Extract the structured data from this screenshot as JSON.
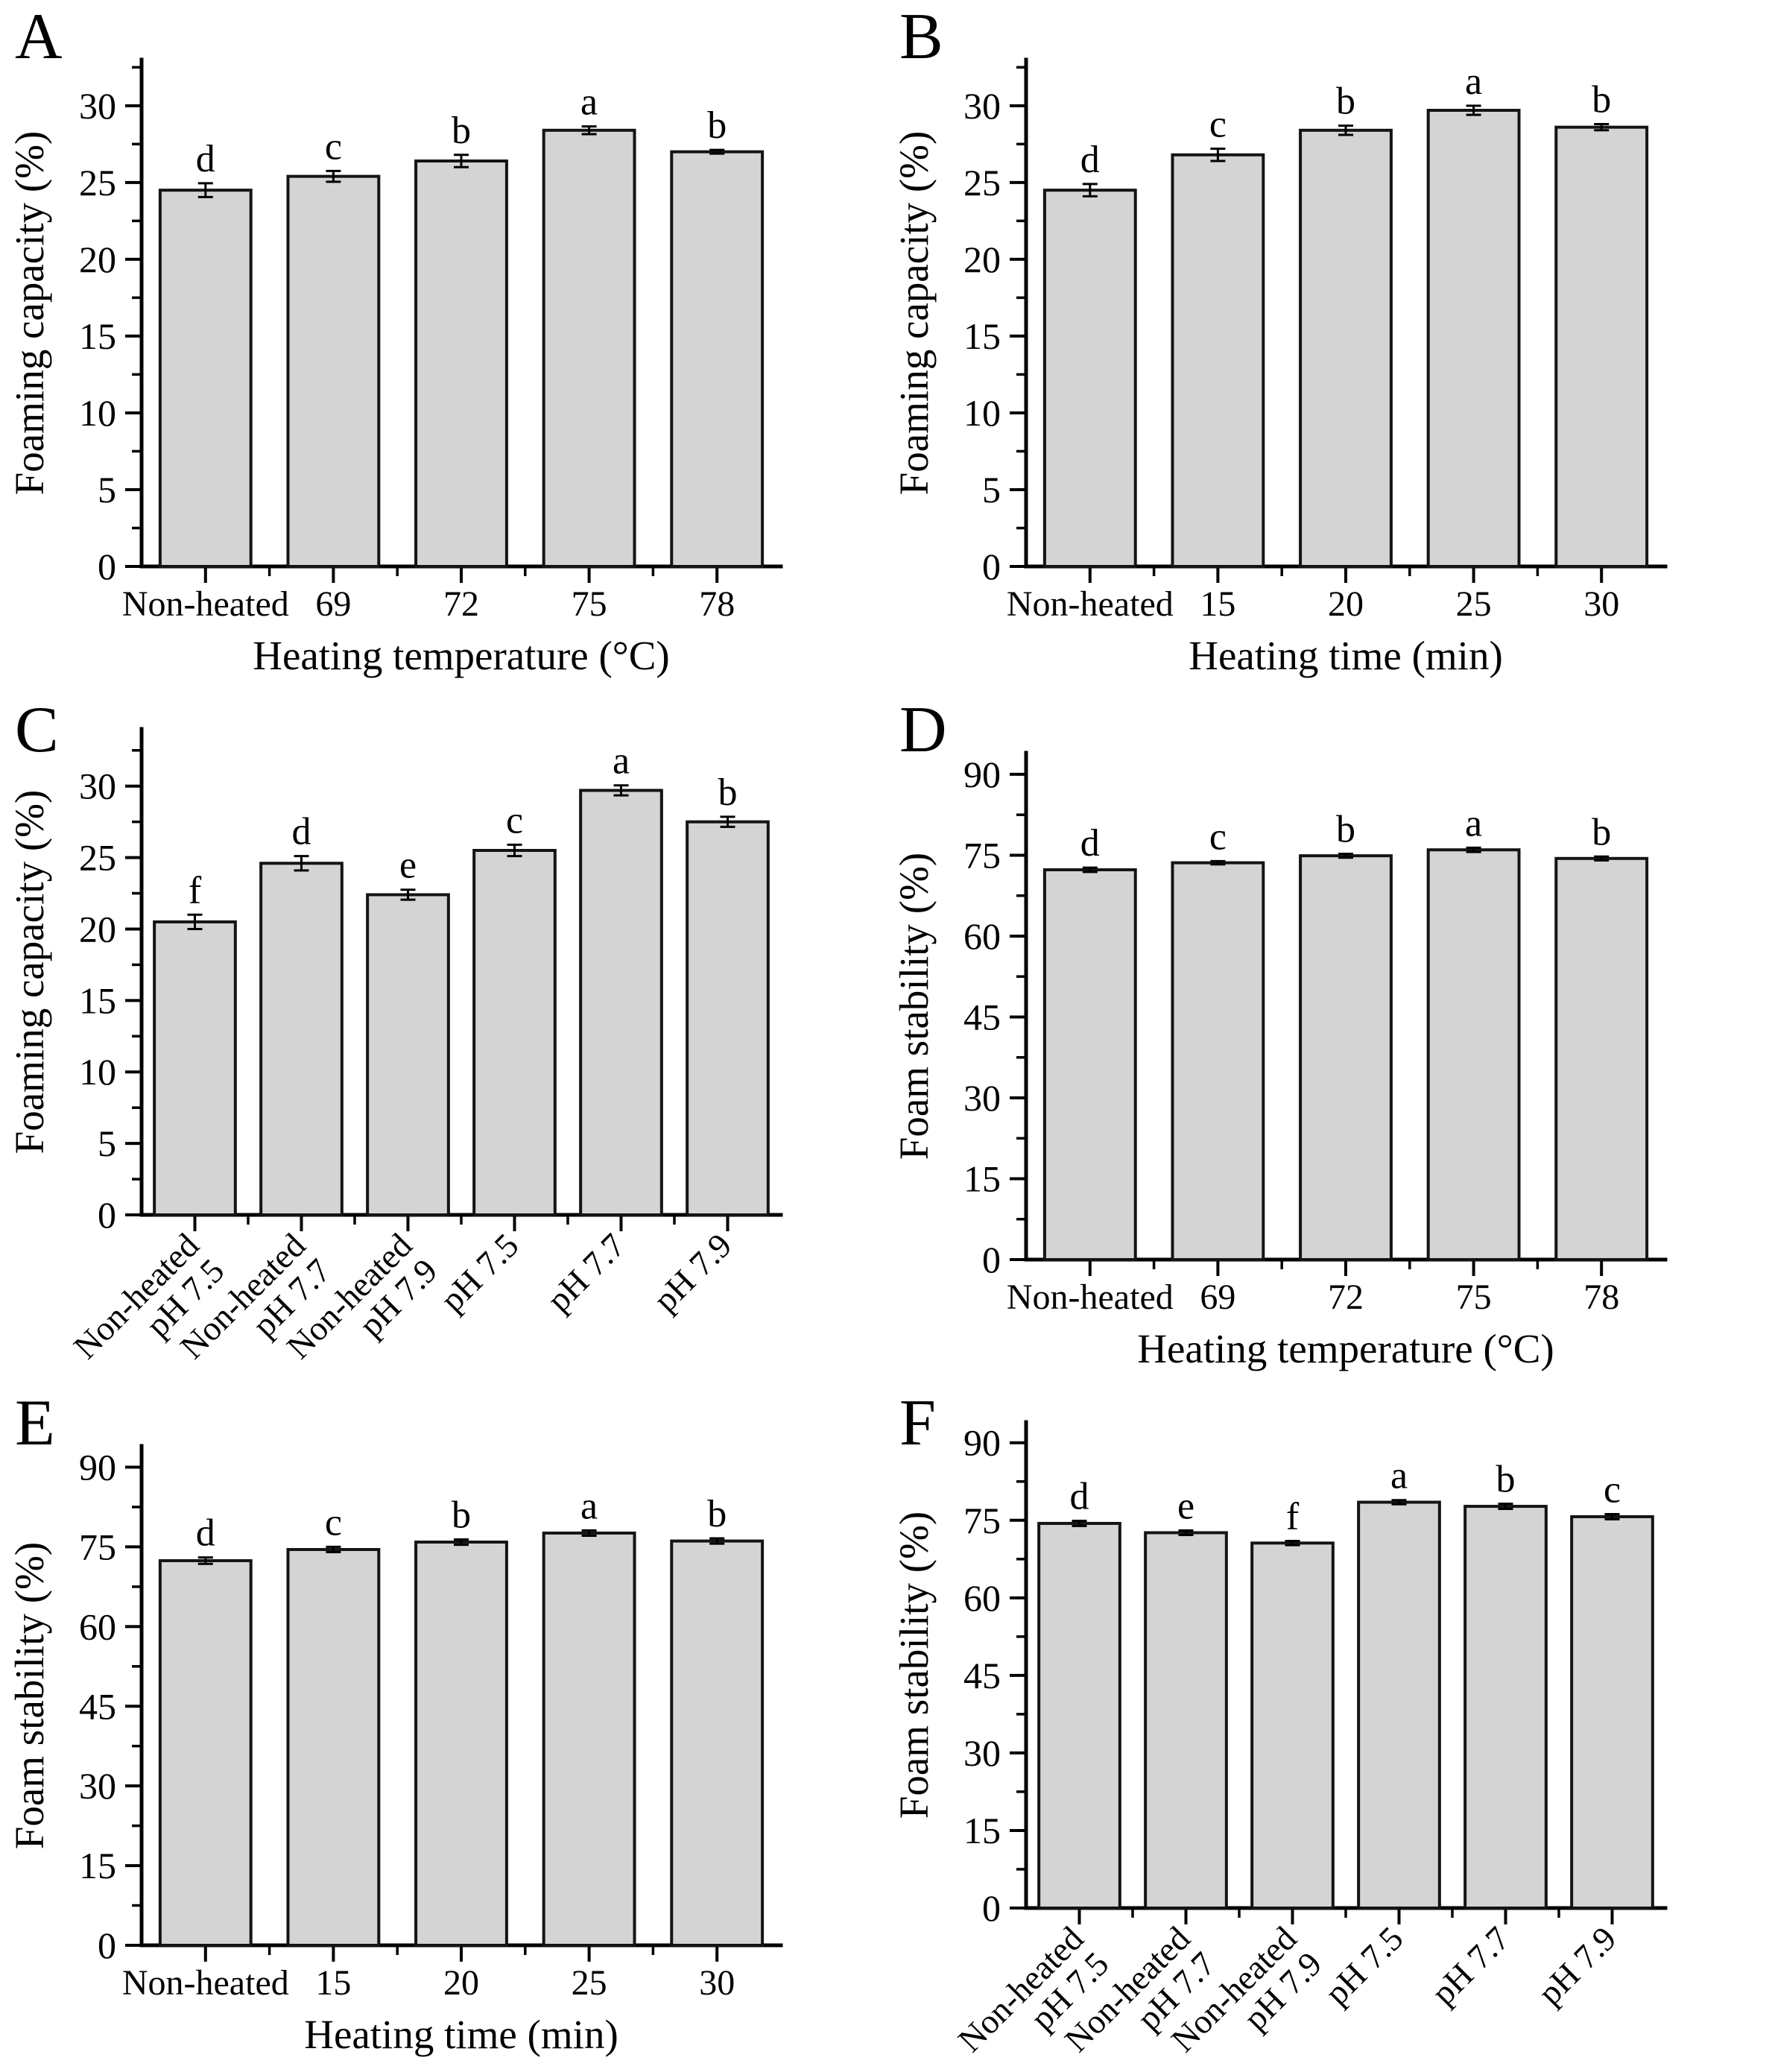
{
  "figure": {
    "background": "#ffffff",
    "bar_fill": "#d4d4d4",
    "bar_stroke": "#141414",
    "axis_color": "#000000",
    "text_color": "#000000"
  },
  "chart_data": [
    {
      "panel": "A",
      "type": "bar",
      "ylabel": "Foaming capacity (%)",
      "xlabel": "Heating temperature (°C)",
      "categories": [
        "Non-heated",
        "69",
        "72",
        "75",
        "78"
      ],
      "values": [
        24.5,
        25.4,
        26.4,
        28.4,
        27.0
      ],
      "errors": [
        0.45,
        0.35,
        0.4,
        0.25,
        0.12
      ],
      "sig_letters": [
        "d",
        "c",
        "b",
        "a",
        "b"
      ],
      "ylim": [
        0,
        33
      ],
      "yticks": [
        0,
        5,
        10,
        15,
        20,
        25,
        30
      ],
      "y_minor_step": 2.5,
      "rotated_x_labels": false,
      "legend": "none",
      "grid": "off"
    },
    {
      "panel": "B",
      "type": "bar",
      "ylabel": "Foaming capacity (%)",
      "xlabel": "Heating time (min)",
      "categories": [
        "Non-heated",
        "15",
        "20",
        "25",
        "30"
      ],
      "values": [
        24.5,
        26.8,
        28.4,
        29.7,
        28.6
      ],
      "errors": [
        0.4,
        0.4,
        0.3,
        0.3,
        0.2
      ],
      "sig_letters": [
        "d",
        "c",
        "b",
        "a",
        "b"
      ],
      "ylim": [
        0,
        33
      ],
      "yticks": [
        0,
        5,
        10,
        15,
        20,
        25,
        30
      ],
      "y_minor_step": 2.5,
      "rotated_x_labels": false,
      "legend": "none",
      "grid": "off"
    },
    {
      "panel": "C",
      "type": "bar",
      "ylabel": "Foaming capacity (%)",
      "xlabel": "",
      "categories": [
        [
          "Non-heated",
          "pH 7.5"
        ],
        [
          "Non-heated",
          "pH 7.7"
        ],
        [
          "Non-heated",
          "pH 7.9"
        ],
        [
          "pH 7.5"
        ],
        [
          "pH 7.7"
        ],
        [
          "pH 7.9"
        ]
      ],
      "values": [
        20.5,
        24.6,
        22.4,
        25.5,
        29.7,
        27.5
      ],
      "errors": [
        0.5,
        0.5,
        0.35,
        0.4,
        0.35,
        0.35
      ],
      "sig_letters": [
        "f",
        "d",
        "e",
        "c",
        "a",
        "b"
      ],
      "ylim": [
        0,
        34
      ],
      "yticks": [
        0,
        5,
        10,
        15,
        20,
        25,
        30
      ],
      "y_minor_step": 2.5,
      "rotated_x_labels": true,
      "legend": "none",
      "grid": "off"
    },
    {
      "panel": "D",
      "type": "bar",
      "ylabel": "Foam stability (%)",
      "xlabel": "Heating temperature (°C)",
      "categories": [
        "Non-heated",
        "69",
        "72",
        "75",
        "78"
      ],
      "values": [
        72.3,
        73.6,
        74.9,
        76.0,
        74.4
      ],
      "errors": [
        0.4,
        0.3,
        0.35,
        0.4,
        0.35
      ],
      "sig_letters": [
        "d",
        "c",
        "b",
        "a",
        "b"
      ],
      "ylim": [
        0,
        94
      ],
      "yticks": [
        0,
        15,
        30,
        45,
        60,
        75,
        90
      ],
      "y_minor_step": 7.5,
      "rotated_x_labels": false,
      "legend": "none",
      "grid": "off"
    },
    {
      "panel": "E",
      "type": "bar",
      "ylabel": "Foam stability (%)",
      "xlabel": "Heating time (min)",
      "categories": [
        "Non-heated",
        "15",
        "20",
        "25",
        "30"
      ],
      "values": [
        72.4,
        74.5,
        75.9,
        77.6,
        76.1
      ],
      "errors": [
        0.6,
        0.5,
        0.5,
        0.5,
        0.5
      ],
      "sig_letters": [
        "d",
        "c",
        "b",
        "a",
        "b"
      ],
      "ylim": [
        0,
        94
      ],
      "yticks": [
        0,
        15,
        30,
        45,
        60,
        75,
        90
      ],
      "y_minor_step": 7.5,
      "rotated_x_labels": false,
      "legend": "none",
      "grid": "off"
    },
    {
      "panel": "F",
      "type": "bar",
      "ylabel": "Foam stability (%)",
      "xlabel": "",
      "categories": [
        [
          "Non-heated",
          "pH 7.5"
        ],
        [
          "Non-heated",
          "pH 7.7"
        ],
        [
          "Non-heated",
          "pH 7.9"
        ],
        [
          "pH 7.5"
        ],
        [
          "pH 7.7"
        ],
        [
          "pH 7.9"
        ]
      ],
      "values": [
        74.4,
        72.6,
        70.6,
        78.5,
        77.7,
        75.7
      ],
      "errors": [
        0.5,
        0.45,
        0.4,
        0.4,
        0.5,
        0.5
      ],
      "sig_letters": [
        "d",
        "e",
        "f",
        "a",
        "b",
        "c"
      ],
      "ylim": [
        0,
        94
      ],
      "yticks": [
        0,
        15,
        30,
        45,
        60,
        75,
        90
      ],
      "y_minor_step": 7.5,
      "rotated_x_labels": true,
      "legend": "none",
      "grid": "off"
    }
  ]
}
